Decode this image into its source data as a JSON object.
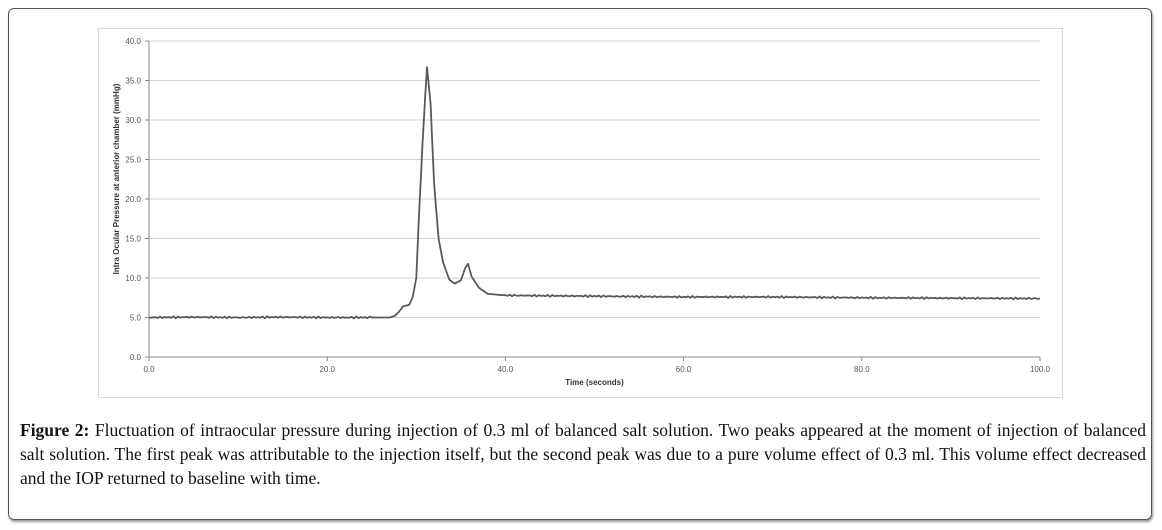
{
  "chart_data": {
    "type": "line",
    "title": "",
    "xlabel": "Time (seconds)",
    "ylabel": "Intra Ocular Pressure at anterior chamber  (mmHg)",
    "xlim": [
      0,
      100
    ],
    "ylim": [
      0,
      40
    ],
    "xticks": [
      "0.0",
      "20.0",
      "40.0",
      "60.0",
      "80.0",
      "100.0"
    ],
    "xtick_values": [
      0,
      20,
      40,
      60,
      80,
      100
    ],
    "yticks": [
      "0.0",
      "5.0",
      "10.0",
      "15.0",
      "20.0",
      "25.0",
      "30.0",
      "35.0",
      "40.0"
    ],
    "ytick_values": [
      0,
      5,
      10,
      15,
      20,
      25,
      30,
      35,
      40
    ],
    "grid": "horizontal",
    "legend": "none",
    "series": [
      {
        "name": "IOP",
        "color": "#595959",
        "x": [
          0,
          5,
          10,
          15,
          20,
          25,
          27,
          27.6,
          28.1,
          28.5,
          29.2,
          29.6,
          30.0,
          30.3,
          30.7,
          31.0,
          31.2,
          31.6,
          32.0,
          32.5,
          33.0,
          33.7,
          34.3,
          35.0,
          35.5,
          35.8,
          36.2,
          37.0,
          38.0,
          40.0,
          50.0,
          60.0,
          70.0,
          80.0,
          90.0,
          100.0
        ],
        "y": [
          5.0,
          5.05,
          5.0,
          5.05,
          5.0,
          5.0,
          5.0,
          5.2,
          5.8,
          6.4,
          6.6,
          7.6,
          10.0,
          18.0,
          27.0,
          33.0,
          36.7,
          32.0,
          22.0,
          15.0,
          12.0,
          9.8,
          9.3,
          9.7,
          11.3,
          11.8,
          10.2,
          8.8,
          8.0,
          7.8,
          7.7,
          7.6,
          7.6,
          7.5,
          7.45,
          7.4
        ]
      }
    ]
  },
  "caption": {
    "label": "Figure 2:",
    "text": " Fluctuation of intraocular pressure during injection of 0.3 ml of balanced salt solution. Two peaks appeared at the moment of injection of balanced salt solution. The first peak was attributable to the injection itself, but the second peak was due to a pure volume effect of 0.3 ml. This volume effect decreased and the IOP returned to baseline with time."
  }
}
